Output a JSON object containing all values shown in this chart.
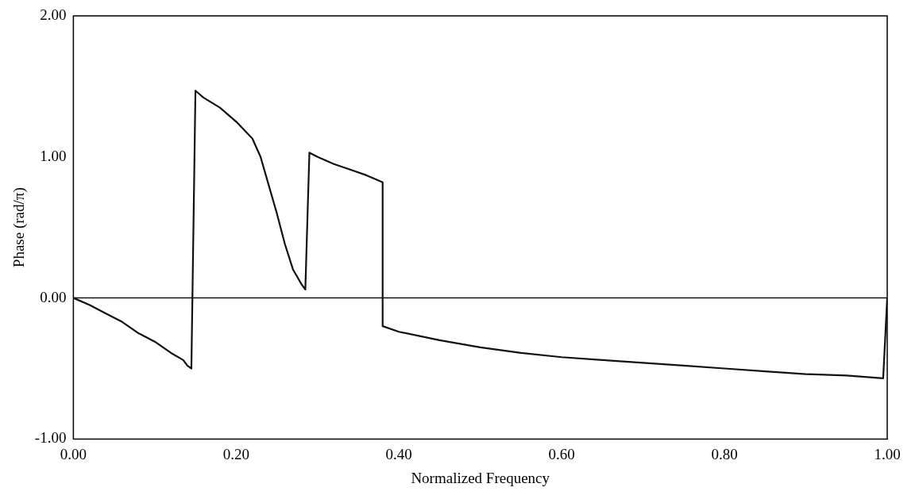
{
  "chart_data": {
    "type": "line",
    "xlabel": "Normalized Frequency",
    "ylabel": "Phase (rad/π)",
    "x": [
      0,
      0.02,
      0.04,
      0.06,
      0.08,
      0.1,
      0.12,
      0.135,
      0.14,
      0.145,
      0.15,
      0.16,
      0.18,
      0.2,
      0.22,
      0.23,
      0.24,
      0.25,
      0.26,
      0.27,
      0.28,
      0.285,
      0.29,
      0.3,
      0.32,
      0.34,
      0.36,
      0.38,
      0.38,
      0.4,
      0.45,
      0.5,
      0.55,
      0.6,
      0.65,
      0.7,
      0.75,
      0.8,
      0.85,
      0.9,
      0.95,
      0.995,
      1.0
    ],
    "series": [
      {
        "color": "#111111",
        "values": [
          0,
          -0.05,
          -0.11,
          -0.17,
          -0.25,
          -0.31,
          -0.39,
          -0.44,
          -0.48,
          -0.5,
          1.47,
          1.42,
          1.35,
          1.25,
          1.13,
          1.0,
          0.8,
          0.6,
          0.38,
          0.2,
          0.1,
          0.06,
          1.03,
          1.0,
          0.95,
          0.91,
          0.87,
          0.82,
          -0.2,
          -0.24,
          -0.3,
          -0.35,
          -0.39,
          -0.42,
          -0.44,
          -0.46,
          -0.48,
          -0.5,
          -0.52,
          -0.54,
          -0.55,
          -0.57,
          0
        ]
      }
    ],
    "xlim": [
      0,
      1
    ],
    "ylim": [
      -1,
      2
    ],
    "xticks": [
      {
        "value": 0,
        "label": "0.00"
      },
      {
        "value": 0.2,
        "label": "0.20"
      },
      {
        "value": 0.4,
        "label": "0.40"
      },
      {
        "value": 0.6,
        "label": "0.60"
      },
      {
        "value": 0.8,
        "label": "0.80"
      },
      {
        "value": 1,
        "label": "1.00"
      }
    ],
    "yticks": [
      {
        "value": -1,
        "label": "-1.00"
      },
      {
        "value": 0,
        "label": "0.00"
      },
      {
        "value": 1,
        "label": "1.00"
      },
      {
        "value": 2,
        "label": "2.00"
      }
    ],
    "ref_lines": [
      {
        "axis": "y",
        "value": 0,
        "color": "#111111"
      }
    ],
    "grid": false,
    "legend": false,
    "marker": "none",
    "line_style": "solid"
  }
}
